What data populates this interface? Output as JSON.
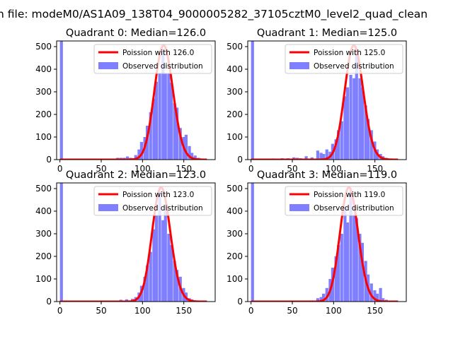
{
  "figure": {
    "suptitle": "n file: modeM0/AS1A09_138T04_9000005282_37105cztM0_level2_quad_clean"
  },
  "colors": {
    "poisson_line": "#ff0000",
    "observed_bars": "#7f7fff",
    "axes": "#000000",
    "background": "#ffffff"
  },
  "chart_data": [
    {
      "type": "bar",
      "title": "Quadrant 0: Median=126.0",
      "xlim": [
        -4,
        188
      ],
      "ylim": [
        0,
        525
      ],
      "xticks": [
        0,
        50,
        100,
        150
      ],
      "yticks": [
        0,
        100,
        200,
        300,
        400,
        500
      ],
      "legend_position": "top-right",
      "legend": [
        "Poission with 126.0",
        "Observed distribution"
      ],
      "median": 126.0,
      "series": [
        {
          "name": "Observed distribution",
          "type": "histogram",
          "bin_width": 3.6,
          "bins": [
            [
              0,
              530
            ],
            [
              68,
              8
            ],
            [
              72,
              8
            ],
            [
              76,
              8
            ],
            [
              80,
              14
            ],
            [
              84,
              8
            ],
            [
              90,
              20
            ],
            [
              94,
              45
            ],
            [
              97,
              78
            ],
            [
              101,
              100
            ],
            [
              104,
              150
            ],
            [
              108,
              210
            ],
            [
              112,
              270
            ],
            [
              115,
              345
            ],
            [
              119,
              380
            ],
            [
              123,
              490
            ],
            [
              126,
              380
            ],
            [
              130,
              380
            ],
            [
              133,
              340
            ],
            [
              137,
              250
            ],
            [
              140,
              230
            ],
            [
              144,
              140
            ],
            [
              148,
              100
            ],
            [
              151,
              110
            ],
            [
              155,
              60
            ],
            [
              158,
              30
            ],
            [
              162,
              18
            ],
            [
              166,
              8
            ]
          ]
        },
        {
          "name": "Poission with 126.0",
          "type": "line",
          "x_range": [
            0,
            178
          ],
          "lambda": 126.0,
          "peak": 505
        }
      ]
    },
    {
      "type": "bar",
      "title": "Quadrant 1: Median=125.0",
      "xlim": [
        -4,
        188
      ],
      "ylim": [
        0,
        525
      ],
      "xticks": [
        0,
        50,
        100,
        150
      ],
      "yticks": [
        0,
        100,
        200,
        300,
        400,
        500
      ],
      "legend_position": "top-right",
      "legend": [
        "Poission with 125.0",
        "Observed distribution"
      ],
      "median": 125.0,
      "series": [
        {
          "name": "Observed distribution",
          "type": "histogram",
          "bin_width": 3.6,
          "bins": [
            [
              0,
              530
            ],
            [
              25,
              5
            ],
            [
              36,
              6
            ],
            [
              43,
              6
            ],
            [
              50,
              10
            ],
            [
              54,
              8
            ],
            [
              58,
              6
            ],
            [
              65,
              15
            ],
            [
              72,
              10
            ],
            [
              79,
              40
            ],
            [
              83,
              30
            ],
            [
              86,
              25
            ],
            [
              90,
              45
            ],
            [
              94,
              35
            ],
            [
              97,
              70
            ],
            [
              101,
              90
            ],
            [
              104,
              130
            ],
            [
              108,
              170
            ],
            [
              112,
              280
            ],
            [
              115,
              320
            ],
            [
              119,
              375
            ],
            [
              123,
              360
            ],
            [
              126,
              490
            ],
            [
              130,
              360
            ],
            [
              133,
              320
            ],
            [
              137,
              240
            ],
            [
              140,
              180
            ],
            [
              144,
              130
            ],
            [
              148,
              80
            ],
            [
              151,
              45
            ],
            [
              155,
              25
            ],
            [
              158,
              15
            ],
            [
              162,
              8
            ]
          ]
        },
        {
          "name": "Poission with 125.0",
          "type": "line",
          "x_range": [
            0,
            178
          ],
          "lambda": 125.0,
          "peak": 505
        }
      ]
    },
    {
      "type": "bar",
      "title": "Quadrant 2: Median=123.0",
      "xlim": [
        -4,
        188
      ],
      "ylim": [
        0,
        525
      ],
      "xticks": [
        0,
        50,
        100,
        150
      ],
      "yticks": [
        0,
        100,
        200,
        300,
        400,
        500
      ],
      "legend_position": "top-right",
      "legend": [
        "Poission with 123.0",
        "Observed distribution"
      ],
      "median": 123.0,
      "series": [
        {
          "name": "Observed distribution",
          "type": "histogram",
          "bin_width": 3.6,
          "bins": [
            [
              0,
              530
            ],
            [
              72,
              8
            ],
            [
              79,
              10
            ],
            [
              86,
              12
            ],
            [
              90,
              20
            ],
            [
              94,
              40
            ],
            [
              97,
              70
            ],
            [
              101,
              110
            ],
            [
              104,
              160
            ],
            [
              108,
              220
            ],
            [
              112,
              320
            ],
            [
              115,
              380
            ],
            [
              119,
              490
            ],
            [
              123,
              360
            ],
            [
              126,
              400
            ],
            [
              130,
              300
            ],
            [
              133,
              250
            ],
            [
              137,
              180
            ],
            [
              140,
              140
            ],
            [
              144,
              110
            ],
            [
              148,
              60
            ],
            [
              151,
              40
            ],
            [
              155,
              15
            ],
            [
              158,
              10
            ],
            [
              162,
              5
            ]
          ]
        },
        {
          "name": "Poission with 123.0",
          "type": "line",
          "x_range": [
            0,
            178
          ],
          "lambda": 123.0,
          "peak": 505
        }
      ]
    },
    {
      "type": "bar",
      "title": "Quadrant 3: Median=119.0",
      "xlim": [
        -4,
        188
      ],
      "ylim": [
        0,
        525
      ],
      "xticks": [
        0,
        50,
        100,
        150
      ],
      "yticks": [
        0,
        100,
        200,
        300,
        400,
        500
      ],
      "legend_position": "top-right",
      "legend": [
        "Poission with 119.0",
        "Observed distribution"
      ],
      "median": 119.0,
      "series": [
        {
          "name": "Observed distribution",
          "type": "histogram",
          "bin_width": 3.6,
          "bins": [
            [
              0,
              530
            ],
            [
              72,
              5
            ],
            [
              79,
              15
            ],
            [
              83,
              20
            ],
            [
              86,
              35
            ],
            [
              90,
              60
            ],
            [
              94,
              100
            ],
            [
              97,
              150
            ],
            [
              101,
              200
            ],
            [
              104,
              250
            ],
            [
              108,
              300
            ],
            [
              112,
              420
            ],
            [
              115,
              350
            ],
            [
              119,
              490
            ],
            [
              123,
              380
            ],
            [
              126,
              370
            ],
            [
              130,
              300
            ],
            [
              133,
              260
            ],
            [
              137,
              180
            ],
            [
              140,
              120
            ],
            [
              144,
              80
            ],
            [
              148,
              50
            ],
            [
              151,
              35
            ],
            [
              155,
              60
            ],
            [
              158,
              15
            ],
            [
              162,
              8
            ]
          ]
        },
        {
          "name": "Poission with 119.0",
          "type": "line",
          "x_range": [
            0,
            178
          ],
          "lambda": 119.0,
          "peak": 505
        }
      ]
    }
  ]
}
